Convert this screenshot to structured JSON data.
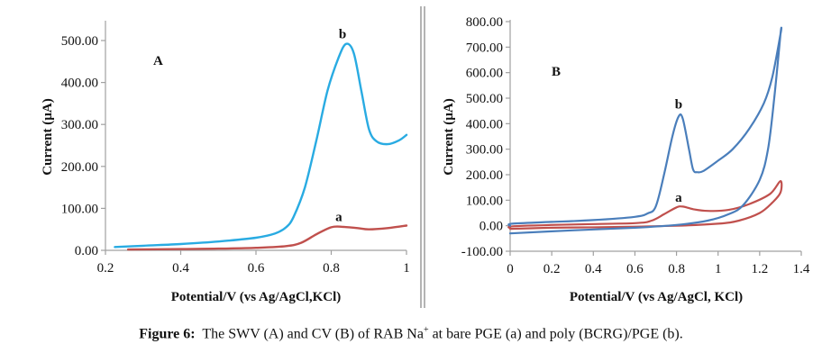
{
  "figure": {
    "caption_label": "Figure 6:",
    "caption_text_1": "The SWV (A) and CV (B) of RAB Na",
    "caption_superscript": "+",
    "caption_text_2": " at bare PGE (a) and poly (BCRG)/PGE (b)."
  },
  "colors": {
    "curve_a": "#c0504d",
    "curve_b_panel_A": "#29abe2",
    "curve_b_panel_B": "#4a7ebb"
  },
  "chart_data": [
    {
      "type": "line",
      "panel": "A",
      "title": "",
      "panel_label": "A",
      "xlabel": "Potential/V (vs Ag/AgCl,KCl)",
      "ylabel": "Current (µA)",
      "xlim": [
        0.2,
        1.0
      ],
      "ylim": [
        0,
        550
      ],
      "x_ticks": [
        0.2,
        0.4,
        0.6,
        0.8,
        1.0
      ],
      "x_tick_labels": [
        "0.2",
        "0.4",
        "0.6",
        "0.8",
        "1"
      ],
      "y_ticks": [
        0,
        100,
        200,
        300,
        400,
        500
      ],
      "y_tick_labels": [
        "0.00",
        "100.00",
        "200.00",
        "300.00",
        "400.00",
        "500.00"
      ],
      "grid": false,
      "series": [
        {
          "name": "a",
          "color": "#c0504d",
          "x": [
            0.26,
            0.4,
            0.5,
            0.6,
            0.68,
            0.72,
            0.76,
            0.8,
            0.83,
            0.87,
            0.9,
            0.95,
            1.0
          ],
          "y": [
            2,
            3,
            4,
            6,
            10,
            18,
            38,
            55,
            56,
            53,
            50,
            53,
            59
          ],
          "label_at": [
            0.82,
            70
          ]
        },
        {
          "name": "b",
          "color": "#29abe2",
          "x": [
            0.225,
            0.3,
            0.4,
            0.5,
            0.6,
            0.65,
            0.68,
            0.7,
            0.73,
            0.76,
            0.79,
            0.82,
            0.84,
            0.86,
            0.88,
            0.9,
            0.92,
            0.95,
            0.98,
            1.0
          ],
          "y": [
            8,
            11,
            15,
            21,
            30,
            40,
            55,
            80,
            150,
            260,
            380,
            460,
            492,
            470,
            380,
            290,
            260,
            253,
            262,
            275
          ],
          "label_at": [
            0.83,
            505
          ]
        }
      ]
    },
    {
      "type": "line",
      "panel": "B",
      "title": "",
      "panel_label": "B",
      "xlabel": "Potential/V (vs Ag/AgCl, KCl)",
      "ylabel": "Current (µA)",
      "xlim": [
        0,
        1.4
      ],
      "ylim": [
        -100,
        800
      ],
      "x_ticks": [
        0,
        0.2,
        0.4,
        0.6,
        0.8,
        1.0,
        1.2,
        1.4
      ],
      "x_tick_labels": [
        "0",
        "0.2",
        "0.4",
        "0.6",
        "0.8",
        "1",
        "1.2",
        "1.4"
      ],
      "y_ticks": [
        -100,
        0,
        100,
        200,
        300,
        400,
        500,
        600,
        700,
        800
      ],
      "y_tick_labels": [
        "-100.00",
        "0.00",
        "100.00",
        "200.00",
        "300.00",
        "400.00",
        "500.00",
        "600.00",
        "700.00",
        "800.00"
      ],
      "grid": false,
      "series": [
        {
          "name": "a",
          "color": "#c0504d",
          "x": [
            0,
            0.02,
            0.3,
            0.6,
            0.68,
            0.74,
            0.8,
            0.83,
            0.88,
            0.95,
            1.05,
            1.15,
            1.25,
            1.3,
            1.3,
            1.26,
            1.2,
            1.1,
            1.0,
            0.8,
            0.5,
            0.2,
            0
          ],
          "y": [
            -10,
            -2,
            5,
            10,
            20,
            45,
            72,
            75,
            65,
            58,
            62,
            85,
            125,
            175,
            130,
            90,
            50,
            20,
            8,
            0,
            -5,
            -8,
            -12
          ],
          "label_at": [
            0.81,
            95
          ]
        },
        {
          "name": "b",
          "color": "#4a7ebb",
          "x": [
            0,
            0.01,
            0.2,
            0.4,
            0.6,
            0.66,
            0.7,
            0.74,
            0.78,
            0.81,
            0.83,
            0.86,
            0.88,
            0.9,
            0.93,
            1.0,
            1.07,
            1.15,
            1.22,
            1.26,
            1.3,
            1.3,
            1.27,
            1.24,
            1.2,
            1.12,
            1.05,
            0.95,
            0.8,
            0.6,
            0.3,
            0
          ],
          "y": [
            0,
            8,
            15,
            22,
            35,
            48,
            75,
            200,
            350,
            428,
            420,
            300,
            220,
            210,
            215,
            255,
            300,
            380,
            480,
            580,
            750,
            750,
            500,
            300,
            180,
            80,
            45,
            20,
            3,
            -8,
            -18,
            -30
          ],
          "label_at": [
            0.81,
            460
          ]
        }
      ]
    }
  ]
}
